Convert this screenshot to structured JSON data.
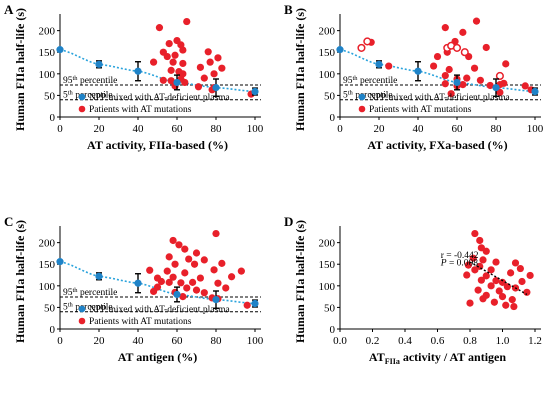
{
  "chart_data": [
    {
      "panel_label": "A",
      "type": "scatter",
      "xlabel": "AT activity, FIIa-based (%)",
      "ylabel": "Human FIIa half-life (s)",
      "xlim": [
        0,
        100
      ],
      "ylim": [
        0,
        220
      ],
      "xticks": [
        "0",
        "20",
        "40",
        "60",
        "80",
        "100"
      ],
      "yticks": [
        "0",
        "50",
        "100",
        "150",
        "200"
      ],
      "reference_lines": [
        {
          "label": "95th percentile",
          "sup": "th",
          "num": "95",
          "word": " percentile",
          "y": 74
        },
        {
          "label": "5th percentile",
          "sup": "th",
          "num": "5",
          "word": " percentile",
          "y": 40
        }
      ],
      "legend": [
        "NPP mixed with AT-deficient plasma",
        "Patients with AT mutations"
      ],
      "npp_series": [
        {
          "x": 0,
          "y": 156,
          "err": 0
        },
        {
          "x": 20,
          "y": 122,
          "err": 8
        },
        {
          "x": 40,
          "y": 106,
          "err": 22
        },
        {
          "x": 60,
          "y": 80,
          "err": 17
        },
        {
          "x": 80,
          "y": 68,
          "err": 20
        },
        {
          "x": 100,
          "y": 59,
          "err": 8
        }
      ],
      "patients": [
        {
          "x": 51,
          "y": 207
        },
        {
          "x": 65,
          "y": 221
        },
        {
          "x": 60,
          "y": 177
        },
        {
          "x": 56,
          "y": 170
        },
        {
          "x": 62,
          "y": 167
        },
        {
          "x": 63,
          "y": 155
        },
        {
          "x": 53,
          "y": 150
        },
        {
          "x": 55,
          "y": 140
        },
        {
          "x": 59,
          "y": 143
        },
        {
          "x": 76,
          "y": 151
        },
        {
          "x": 81,
          "y": 137
        },
        {
          "x": 48,
          "y": 127
        },
        {
          "x": 58,
          "y": 127
        },
        {
          "x": 63,
          "y": 124
        },
        {
          "x": 77,
          "y": 127
        },
        {
          "x": 72,
          "y": 115
        },
        {
          "x": 83,
          "y": 113
        },
        {
          "x": 57,
          "y": 108
        },
        {
          "x": 61,
          "y": 105
        },
        {
          "x": 63,
          "y": 100
        },
        {
          "x": 79,
          "y": 100
        },
        {
          "x": 74,
          "y": 90
        },
        {
          "x": 53,
          "y": 85
        },
        {
          "x": 57,
          "y": 84
        },
        {
          "x": 62,
          "y": 88
        },
        {
          "x": 64,
          "y": 80
        },
        {
          "x": 59,
          "y": 72
        },
        {
          "x": 71,
          "y": 70
        },
        {
          "x": 79,
          "y": 68
        },
        {
          "x": 78,
          "y": 63
        },
        {
          "x": 98,
          "y": 53
        }
      ],
      "patients_open": []
    },
    {
      "panel_label": "B",
      "type": "scatter",
      "xlabel": "AT activity, FXa-based (%)",
      "ylabel": "Human FIIa half-life (s)",
      "xlim": [
        0,
        100
      ],
      "ylim": [
        0,
        220
      ],
      "xticks": [
        "0",
        "20",
        "40",
        "60",
        "80",
        "100"
      ],
      "yticks": [
        "0",
        "50",
        "100",
        "150",
        "200"
      ],
      "reference_lines": [
        {
          "label": "95th percentile",
          "sup": "th",
          "num": "95",
          "word": " percentile",
          "y": 74
        },
        {
          "label": "5th percentile",
          "sup": "th",
          "num": "5",
          "word": " percentile",
          "y": 40
        }
      ],
      "legend": [
        "NPP mixed with AT-deficient plasma",
        "Patients with AT mutations"
      ],
      "npp_series": [
        {
          "x": 0,
          "y": 156,
          "err": 0
        },
        {
          "x": 20,
          "y": 122,
          "err": 8
        },
        {
          "x": 40,
          "y": 106,
          "err": 22
        },
        {
          "x": 60,
          "y": 80,
          "err": 17
        },
        {
          "x": 80,
          "y": 68,
          "err": 20
        },
        {
          "x": 100,
          "y": 59,
          "err": 8
        }
      ],
      "patients": [
        {
          "x": 54,
          "y": 207
        },
        {
          "x": 70,
          "y": 222
        },
        {
          "x": 63,
          "y": 196
        },
        {
          "x": 59,
          "y": 175
        },
        {
          "x": 16,
          "y": 173
        },
        {
          "x": 75,
          "y": 161
        },
        {
          "x": 55,
          "y": 150
        },
        {
          "x": 50,
          "y": 140
        },
        {
          "x": 66,
          "y": 140
        },
        {
          "x": 85,
          "y": 123
        },
        {
          "x": 25,
          "y": 118
        },
        {
          "x": 48,
          "y": 118
        },
        {
          "x": 56,
          "y": 110
        },
        {
          "x": 69,
          "y": 113
        },
        {
          "x": 54,
          "y": 96
        },
        {
          "x": 60,
          "y": 88
        },
        {
          "x": 65,
          "y": 90
        },
        {
          "x": 72,
          "y": 85
        },
        {
          "x": 77,
          "y": 73
        },
        {
          "x": 82,
          "y": 75
        },
        {
          "x": 54,
          "y": 77
        },
        {
          "x": 60,
          "y": 72
        },
        {
          "x": 63,
          "y": 75
        },
        {
          "x": 84,
          "y": 78
        },
        {
          "x": 95,
          "y": 72
        },
        {
          "x": 98,
          "y": 63
        },
        {
          "x": 57,
          "y": 54
        },
        {
          "x": 82,
          "y": 57
        }
      ],
      "patients_open": [
        {
          "x": 11,
          "y": 160
        },
        {
          "x": 14,
          "y": 175
        },
        {
          "x": 55,
          "y": 160
        },
        {
          "x": 57,
          "y": 165
        },
        {
          "x": 60,
          "y": 160
        },
        {
          "x": 64,
          "y": 150
        },
        {
          "x": 82,
          "y": 95
        }
      ]
    },
    {
      "panel_label": "C",
      "type": "scatter",
      "xlabel": "AT antigen (%)",
      "ylabel": "Human FIIa half-life (s)",
      "xlim": [
        0,
        100
      ],
      "ylim": [
        0,
        220
      ],
      "xticks": [
        "0",
        "20",
        "40",
        "60",
        "80",
        "100"
      ],
      "yticks": [
        "0",
        "50",
        "100",
        "150",
        "200"
      ],
      "reference_lines": [
        {
          "label": "95th percentile",
          "sup": "th",
          "num": "95",
          "word": " percentile",
          "y": 74
        },
        {
          "label": "5th percentile",
          "sup": "th",
          "num": "5",
          "word": " percentile",
          "y": 40
        }
      ],
      "legend": [
        "NPP mixed with AT-deficient plasma",
        "Patients with AT mutations"
      ],
      "npp_series": [
        {
          "x": 0,
          "y": 156,
          "err": 0
        },
        {
          "x": 20,
          "y": 122,
          "err": 8
        },
        {
          "x": 40,
          "y": 106,
          "err": 22
        },
        {
          "x": 60,
          "y": 80,
          "err": 17
        },
        {
          "x": 80,
          "y": 68,
          "err": 20
        },
        {
          "x": 100,
          "y": 59,
          "err": 8
        }
      ],
      "patients": [
        {
          "x": 80,
          "y": 221
        },
        {
          "x": 58,
          "y": 205
        },
        {
          "x": 61,
          "y": 195
        },
        {
          "x": 64,
          "y": 185
        },
        {
          "x": 70,
          "y": 176
        },
        {
          "x": 56,
          "y": 167
        },
        {
          "x": 66,
          "y": 162
        },
        {
          "x": 74,
          "y": 160
        },
        {
          "x": 59,
          "y": 150
        },
        {
          "x": 69,
          "y": 150
        },
        {
          "x": 83,
          "y": 152
        },
        {
          "x": 46,
          "y": 136
        },
        {
          "x": 55,
          "y": 134
        },
        {
          "x": 64,
          "y": 130
        },
        {
          "x": 79,
          "y": 137
        },
        {
          "x": 93,
          "y": 134
        },
        {
          "x": 50,
          "y": 118
        },
        {
          "x": 58,
          "y": 120
        },
        {
          "x": 72,
          "y": 118
        },
        {
          "x": 88,
          "y": 121
        },
        {
          "x": 52,
          "y": 110
        },
        {
          "x": 56,
          "y": 108
        },
        {
          "x": 62,
          "y": 107
        },
        {
          "x": 68,
          "y": 108
        },
        {
          "x": 81,
          "y": 106
        },
        {
          "x": 50,
          "y": 97
        },
        {
          "x": 65,
          "y": 95
        },
        {
          "x": 70,
          "y": 90
        },
        {
          "x": 85,
          "y": 95
        },
        {
          "x": 48,
          "y": 87
        },
        {
          "x": 59,
          "y": 85
        },
        {
          "x": 74,
          "y": 84
        },
        {
          "x": 63,
          "y": 75
        },
        {
          "x": 78,
          "y": 72
        },
        {
          "x": 81,
          "y": 70
        },
        {
          "x": 96,
          "y": 55
        }
      ],
      "patients_open": []
    },
    {
      "panel_label": "D",
      "type": "scatter",
      "xlabel": "activity / AT antigen",
      "xlabel_prefix": "AT",
      "xlabel_sub": "FIIa",
      "ylabel": "Human FIIa half-life (s)",
      "xlim": [
        0,
        1.2
      ],
      "ylim": [
        0,
        220
      ],
      "xticks": [
        "0.0",
        "0.2",
        "0.4",
        "0.6",
        "0.8",
        "1.0",
        "1.2"
      ],
      "yticks": [
        "0",
        "50",
        "100",
        "150",
        "200"
      ],
      "annotation": {
        "r": "r = -0.442",
        "p_label": "P",
        "p_value": " = 0.008"
      },
      "trendline": {
        "x1": 0.8,
        "y1": 155,
        "x2": 1.15,
        "y2": 80
      },
      "patients": [
        {
          "x": 0.83,
          "y": 221
        },
        {
          "x": 0.86,
          "y": 205
        },
        {
          "x": 0.87,
          "y": 188
        },
        {
          "x": 0.9,
          "y": 180
        },
        {
          "x": 0.82,
          "y": 164
        },
        {
          "x": 0.88,
          "y": 160
        },
        {
          "x": 0.79,
          "y": 148
        },
        {
          "x": 0.86,
          "y": 145
        },
        {
          "x": 0.96,
          "y": 155
        },
        {
          "x": 1.08,
          "y": 153
        },
        {
          "x": 0.83,
          "y": 137
        },
        {
          "x": 0.93,
          "y": 137
        },
        {
          "x": 1.11,
          "y": 140
        },
        {
          "x": 0.78,
          "y": 125
        },
        {
          "x": 0.9,
          "y": 123
        },
        {
          "x": 1.05,
          "y": 130
        },
        {
          "x": 1.17,
          "y": 124
        },
        {
          "x": 0.87,
          "y": 113
        },
        {
          "x": 0.96,
          "y": 112
        },
        {
          "x": 1.0,
          "y": 108
        },
        {
          "x": 1.12,
          "y": 110
        },
        {
          "x": 0.93,
          "y": 100
        },
        {
          "x": 1.03,
          "y": 98
        },
        {
          "x": 1.08,
          "y": 95
        },
        {
          "x": 0.85,
          "y": 90
        },
        {
          "x": 0.98,
          "y": 88
        },
        {
          "x": 1.15,
          "y": 85
        },
        {
          "x": 0.9,
          "y": 78
        },
        {
          "x": 1.0,
          "y": 75
        },
        {
          "x": 1.06,
          "y": 68
        },
        {
          "x": 0.88,
          "y": 70
        },
        {
          "x": 0.95,
          "y": 62
        },
        {
          "x": 1.02,
          "y": 55
        },
        {
          "x": 1.07,
          "y": 52
        },
        {
          "x": 0.8,
          "y": 60
        }
      ],
      "patients_open": []
    }
  ],
  "colors": {
    "patient": "#e8202a",
    "npp": "#1f83c8",
    "npp_fit": "#2aa3dc",
    "axis": "#000000"
  }
}
